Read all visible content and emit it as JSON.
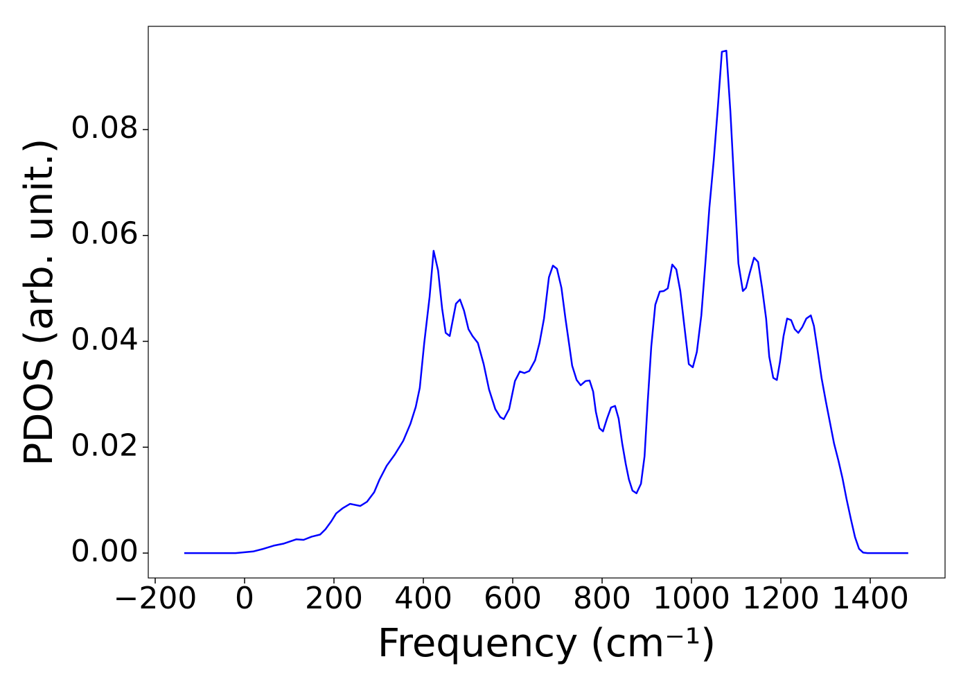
{
  "chart_data": {
    "type": "line",
    "xlabel": "Frequency (cm⁻¹)",
    "ylabel": "PDOS (arb. unit.)",
    "x": [
      -135,
      -20,
      19,
      42,
      65,
      88,
      116,
      132,
      150,
      169,
      181,
      194,
      205,
      220,
      236,
      259,
      274,
      290,
      302,
      318,
      336,
      355,
      371,
      383,
      392,
      402,
      414,
      423,
      433,
      442,
      450,
      459,
      473,
      482,
      491,
      501,
      510,
      522,
      535,
      547,
      561,
      572,
      580,
      592,
      605,
      616,
      626,
      637,
      650,
      660,
      670,
      681,
      690,
      699,
      709,
      718,
      727,
      733,
      743,
      752,
      763,
      772,
      780,
      786,
      794,
      802,
      811,
      820,
      829,
      837,
      845,
      853,
      860,
      868,
      877,
      887,
      895,
      902,
      910,
      919,
      929,
      938,
      947,
      957,
      966,
      975,
      984,
      994,
      1003,
      1012,
      1022,
      1031,
      1040,
      1050,
      1059,
      1068,
      1078,
      1087,
      1096,
      1105,
      1115,
      1122,
      1130,
      1140,
      1149,
      1158,
      1167,
      1174,
      1183,
      1191,
      1198,
      1206,
      1214,
      1223,
      1231,
      1239,
      1248,
      1257,
      1267,
      1274,
      1282,
      1291,
      1301,
      1310,
      1319,
      1329,
      1338,
      1347,
      1357,
      1366,
      1375,
      1384,
      1394,
      1485
    ],
    "series": [
      {
        "color": "#0000ff",
        "values": [
          0,
          0,
          0.0003,
          0.0008,
          0.0014,
          0.0018,
          0.0026,
          0.0025,
          0.0031,
          0.0035,
          0.0045,
          0.006,
          0.0075,
          0.0085,
          0.0093,
          0.0089,
          0.0097,
          0.0115,
          0.0139,
          0.0165,
          0.0186,
          0.0212,
          0.0244,
          0.0276,
          0.0312,
          0.0397,
          0.0484,
          0.0571,
          0.0534,
          0.0462,
          0.0416,
          0.041,
          0.0471,
          0.0479,
          0.0458,
          0.0423,
          0.041,
          0.0397,
          0.0357,
          0.0309,
          0.0272,
          0.0257,
          0.0253,
          0.0272,
          0.0325,
          0.0343,
          0.034,
          0.0344,
          0.0364,
          0.0397,
          0.0443,
          0.0521,
          0.0543,
          0.0537,
          0.0501,
          0.0443,
          0.039,
          0.0354,
          0.0327,
          0.0317,
          0.0325,
          0.0326,
          0.0305,
          0.0267,
          0.0236,
          0.023,
          0.0254,
          0.0275,
          0.0278,
          0.0254,
          0.0207,
          0.0168,
          0.0139,
          0.0118,
          0.0113,
          0.0131,
          0.0183,
          0.0285,
          0.039,
          0.0469,
          0.0494,
          0.0495,
          0.05,
          0.0545,
          0.0536,
          0.0495,
          0.0429,
          0.0357,
          0.0351,
          0.038,
          0.0449,
          0.0547,
          0.0652,
          0.0744,
          0.0842,
          0.0947,
          0.0949,
          0.0835,
          0.0691,
          0.0547,
          0.0495,
          0.0501,
          0.0528,
          0.0558,
          0.055,
          0.0501,
          0.0443,
          0.0371,
          0.0331,
          0.0327,
          0.0361,
          0.041,
          0.0443,
          0.044,
          0.0423,
          0.0416,
          0.0427,
          0.0443,
          0.0449,
          0.0429,
          0.0384,
          0.0331,
          0.0285,
          0.0246,
          0.0207,
          0.0174,
          0.0141,
          0.0102,
          0.0063,
          0.003,
          0.0008,
          0.0001,
          0,
          0
        ]
      }
    ],
    "xlim": [
      -215.5,
      1567.4
    ],
    "ylim": [
      -0.0047,
      0.0995
    ],
    "xticks": [
      {
        "value": -200,
        "label": "−200"
      },
      0,
      200,
      400,
      600,
      800,
      1000,
      1200,
      1400
    ],
    "yticks": [
      {
        "value": 0,
        "label": "0.00"
      },
      {
        "value": 0.02,
        "label": "0.02"
      },
      {
        "value": 0.04,
        "label": "0.04"
      },
      {
        "value": 0.06,
        "label": "0.06"
      },
      {
        "value": 0.08,
        "label": "0.08"
      }
    ],
    "grid": false
  }
}
